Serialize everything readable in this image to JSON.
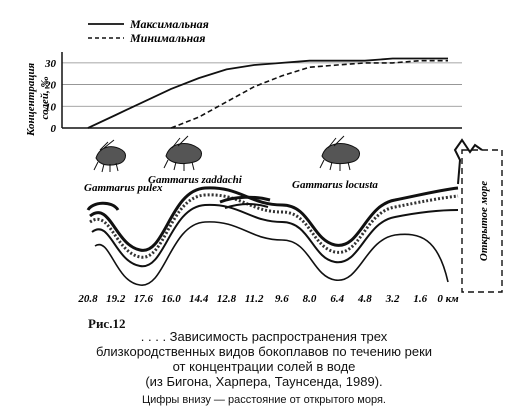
{
  "legend": {
    "max_label": "Максимальная",
    "min_label": "Минимальная"
  },
  "chart_data": {
    "type": "line",
    "ylabel": "Концентрация солей, ‰",
    "yticks": [
      "30",
      "20",
      "10",
      "0"
    ],
    "ylim": [
      0,
      35
    ],
    "x_categories": [
      "20.8",
      "19.2",
      "17.6",
      "16.0",
      "14.4",
      "12.8",
      "11.2",
      "9.6",
      "8.0",
      "6.4",
      "4.8",
      "3.2",
      "1.6",
      "0 км"
    ],
    "series": [
      {
        "name": "Максимальная",
        "style": "solid",
        "values": [
          0,
          6,
          12,
          18,
          23,
          27,
          29,
          30,
          31,
          31,
          31,
          32,
          32,
          32
        ]
      },
      {
        "name": "Минимальная",
        "style": "dashed",
        "values": [
          null,
          null,
          null,
          0,
          5,
          12,
          19,
          24,
          28,
          29,
          30,
          30,
          31,
          31
        ]
      }
    ],
    "grid": true
  },
  "species": [
    {
      "name": "Gammarus pulex"
    },
    {
      "name": "Gammarus zaddachi"
    },
    {
      "name": "Gammarus locusta"
    }
  ],
  "sea_label": "Открытое море",
  "figure_label": "Рис.12",
  "caption": {
    "line1": ". . . . Зависимость распространения трех",
    "line2": "близкородственных видов бокоплавов по течению реки",
    "line3": "от концентрации солей в воде",
    "line4": "(из Бигона, Харпера, Таунсенда, 1989)."
  },
  "note": "Цифры внизу — расстояние от открытого моря."
}
